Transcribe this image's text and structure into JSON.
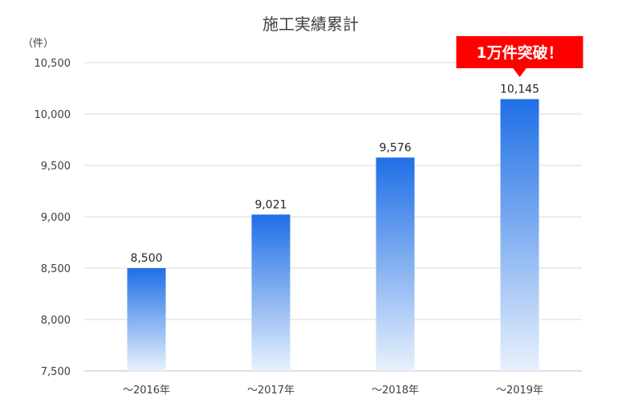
{
  "chart_data": {
    "type": "bar",
    "title": "施工実績累計",
    "unit_label": "（件）",
    "categories": [
      "～2016年",
      "～2017年",
      "～2018年",
      "～2019年"
    ],
    "values": [
      8500,
      9021,
      9576,
      10145
    ],
    "data_labels": [
      "8,500",
      "9,021",
      "9,576",
      "10,145"
    ],
    "ylim": [
      7500,
      10500
    ],
    "yticks": [
      7500,
      8000,
      8500,
      9000,
      9500,
      10000,
      10500
    ],
    "ytick_labels": [
      "7,500",
      "8,000",
      "8,500",
      "9,000",
      "9,500",
      "10,000",
      "10,500"
    ],
    "grid": true,
    "bar_gradient": [
      "#1f6fe6",
      "#e8f1fc"
    ],
    "annotation": {
      "text": "1万件突破！",
      "target_index": 3,
      "color": "#ff0000"
    }
  }
}
